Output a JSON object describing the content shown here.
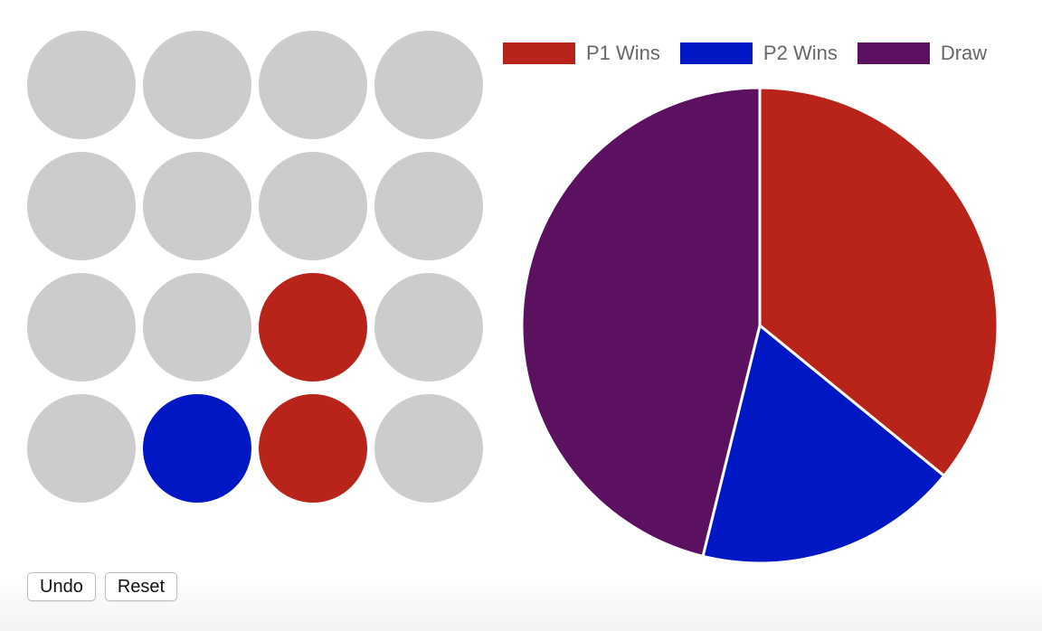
{
  "board": {
    "rows": 4,
    "cols": 4,
    "cells": [
      [
        "empty",
        "empty",
        "empty",
        "empty"
      ],
      [
        "empty",
        "empty",
        "empty",
        "empty"
      ],
      [
        "empty",
        "empty",
        "p1",
        "empty"
      ],
      [
        "empty",
        "p2",
        "p1",
        "empty"
      ]
    ],
    "colors": {
      "empty": "#cccccc",
      "p1": "#b8241a",
      "p2": "#0018c4"
    }
  },
  "controls": {
    "undo_label": "Undo",
    "reset_label": "Reset"
  },
  "chart_data": {
    "type": "pie",
    "categories": [
      "P1 Wins",
      "P2 Wins",
      "Draw"
    ],
    "values": [
      7,
      3.5,
      9
    ],
    "colors": [
      "#b8241a",
      "#0018c4",
      "#5c1160"
    ],
    "legend_position": "top"
  }
}
